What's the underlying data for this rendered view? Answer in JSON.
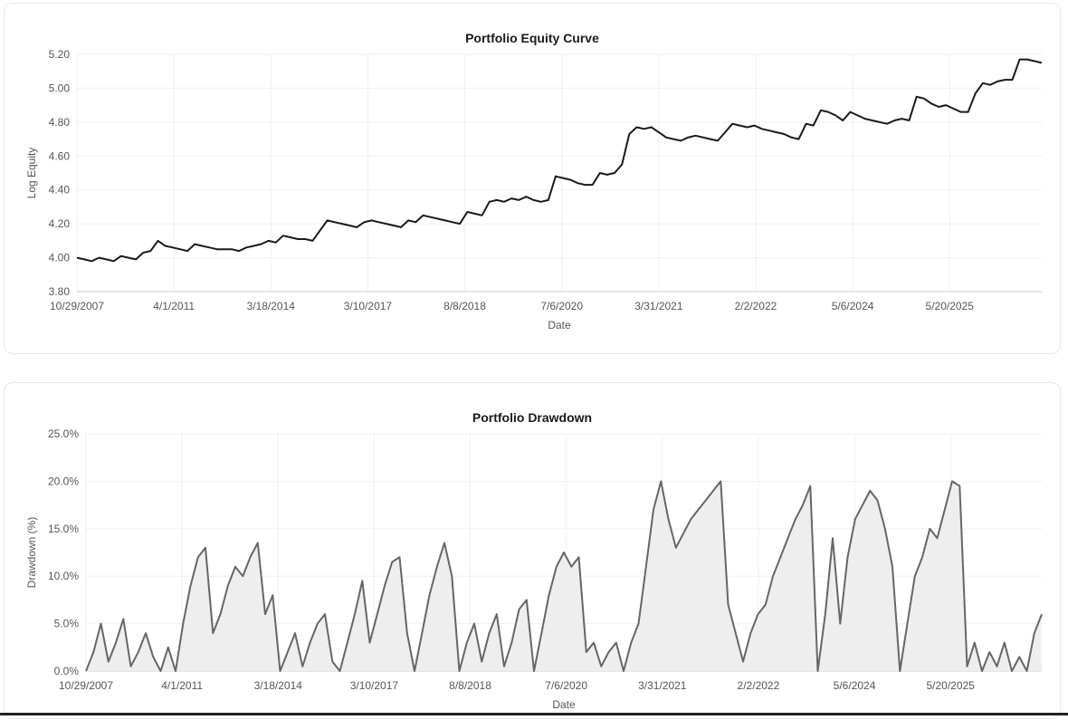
{
  "chart_data": [
    {
      "type": "line",
      "title": "Portfolio Equity Curve",
      "xlabel": "Date",
      "ylabel": "Log Equity",
      "ylim": [
        3.8,
        5.2
      ],
      "yticks": [
        "5.20",
        "5.00",
        "4.80",
        "4.60",
        "4.40",
        "4.20",
        "4.00",
        "3.80"
      ],
      "ytick_values": [
        5.2,
        5.0,
        4.8,
        4.6,
        4.4,
        4.2,
        4.0,
        3.8
      ],
      "x_tick_labels": [
        "10/29/2007",
        "4/1/2011",
        "3/18/2014",
        "3/10/2017",
        "8/8/2018",
        "7/6/2020",
        "3/31/2021",
        "2/2/2022",
        "5/6/2024",
        "5/20/2025"
      ],
      "grid": true,
      "line_color": "#1a1a1a",
      "series": [
        {
          "values": [
            4.0,
            3.99,
            3.98,
            4.0,
            3.99,
            3.98,
            4.01,
            4.0,
            3.99,
            4.03,
            4.04,
            4.1,
            4.07,
            4.06,
            4.05,
            4.04,
            4.08,
            4.07,
            4.06,
            4.05,
            4.05,
            4.05,
            4.04,
            4.06,
            4.07,
            4.08,
            4.1,
            4.09,
            4.13,
            4.12,
            4.11,
            4.11,
            4.1,
            4.16,
            4.22,
            4.21,
            4.2,
            4.19,
            4.18,
            4.21,
            4.22,
            4.21,
            4.2,
            4.19,
            4.18,
            4.22,
            4.21,
            4.25,
            4.24,
            4.23,
            4.22,
            4.21,
            4.2,
            4.27,
            4.26,
            4.25,
            4.33,
            4.34,
            4.33,
            4.35,
            4.34,
            4.36,
            4.34,
            4.33,
            4.34,
            4.48,
            4.47,
            4.46,
            4.44,
            4.43,
            4.43,
            4.5,
            4.49,
            4.5,
            4.55,
            4.73,
            4.77,
            4.76,
            4.77,
            4.74,
            4.71,
            4.7,
            4.69,
            4.71,
            4.72,
            4.71,
            4.7,
            4.69,
            4.74,
            4.79,
            4.78,
            4.77,
            4.78,
            4.76,
            4.75,
            4.74,
            4.73,
            4.71,
            4.7,
            4.79,
            4.78,
            4.87,
            4.86,
            4.84,
            4.81,
            4.86,
            4.84,
            4.82,
            4.81,
            4.8,
            4.79,
            4.81,
            4.82,
            4.81,
            4.95,
            4.94,
            4.91,
            4.89,
            4.9,
            4.88,
            4.86,
            4.86,
            4.97,
            5.03,
            5.02,
            5.04,
            5.05,
            5.05,
            5.17,
            5.17,
            5.16,
            5.15
          ]
        }
      ]
    },
    {
      "type": "area",
      "title": "Portfolio Drawdown",
      "xlabel": "Date",
      "ylabel": "Drawdown (%)",
      "ylim": [
        0,
        25
      ],
      "yticks": [
        "25.0%",
        "20.0%",
        "15.0%",
        "10.0%",
        "5.0%",
        "0.0%"
      ],
      "ytick_values": [
        25,
        20,
        15,
        10,
        5,
        0
      ],
      "x_tick_labels": [
        "10/29/2007",
        "4/1/2011",
        "3/18/2014",
        "3/10/2017",
        "8/8/2018",
        "7/6/2020",
        "3/31/2021",
        "2/2/2022",
        "5/6/2024",
        "5/20/2025"
      ],
      "grid": true,
      "line_color": "#666666",
      "fill_color": "#eeeeee",
      "series": [
        {
          "values": [
            0,
            2,
            5,
            1,
            3,
            5.5,
            0.5,
            2,
            4,
            1.5,
            0,
            2.5,
            0,
            5,
            9,
            12,
            13,
            4,
            6,
            9,
            11,
            10,
            12,
            13.5,
            6,
            8,
            0,
            2,
            4,
            0.5,
            3,
            5,
            6,
            1,
            0,
            3,
            6,
            9.5,
            3,
            6,
            9,
            11.5,
            12,
            4,
            0,
            4,
            8,
            11,
            13.5,
            10,
            0,
            3,
            5,
            1,
            4,
            6,
            0.5,
            3,
            6.5,
            7.5,
            0,
            4,
            8,
            11,
            12.5,
            11,
            12,
            2,
            3,
            0.5,
            2,
            3,
            0,
            3,
            5,
            11,
            17,
            20,
            16,
            13,
            14.5,
            16,
            17,
            18,
            19,
            20,
            7,
            4,
            1,
            4,
            6,
            7,
            10,
            12,
            14,
            16,
            17.5,
            19.5,
            0,
            6,
            14,
            5,
            12,
            16,
            17.5,
            19,
            18,
            15,
            11,
            0,
            5,
            10,
            12,
            15,
            14,
            17,
            20,
            19.5,
            0.5,
            3,
            0,
            2,
            0.5,
            3,
            0,
            1.5,
            0,
            4,
            6
          ]
        }
      ]
    }
  ]
}
